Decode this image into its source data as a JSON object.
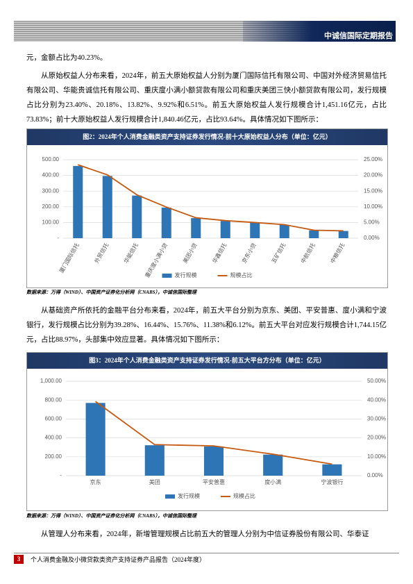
{
  "header": {
    "title": "中诚信国际定期报告"
  },
  "paragraphs": [
    "元，金额占比为40.23%。",
    "从原始权益人分布来看，2024年，前五大原始权益人分别为厦门国际信托有限公司、中国对外经济贸易信托有限公司、华能贵诚信托有限公司、重庆度小满小额贷款有限公司和重庆美团三快小额贷款有限公司，发行规模占比分别为23.40%、20.18%、13.82%、9.92%和6.51%。前五大原始权益人发行规模合计1,451.16亿元，占比73.83%；前十大原始权益人发行规模合计1,840.46亿元，占比93.64%。具体情况如下图所示：",
    "从基础资产所依托的金融平台分布来看，2024年，前五大平台分别为京东、美团、平安普惠、度小满和宁波银行，发行规模占比分别为39.28%、16.44%、15.76%、11.38%和6.12%。前五大平台对应发行规模合计1,744.15亿元，占比88.97%，头部集中效应显著。具体情况如下图所示：",
    "从管理人分布来看，2024年，新增管理规模占比前五大的管理人分别为中信证券股份有限公司、华泰证"
  ],
  "chart_data": [
    {
      "type": "combo",
      "title": "图2：2024年个人消费金融类资产支持证券发行情况-前十大原始权益人分布（单位：亿元）",
      "categories": [
        "厦门国际信托",
        "外贸信托",
        "华能信托",
        "重庆度小满小贷",
        "美团小贷",
        "华鑫信托",
        "京东小贷",
        "五矿信托",
        "中航信托",
        "中粮信托"
      ],
      "series": [
        {
          "name": "发行规模",
          "type": "bar",
          "color": "#2e75b6",
          "values": [
            459.9,
            396.6,
            271.6,
            195.0,
            128.0,
            110,
            98,
            85,
            50,
            46
          ]
        },
        {
          "name": "规模占比",
          "type": "line",
          "axis": "y2",
          "color": "#c55a11",
          "values": [
            23.4,
            20.18,
            13.82,
            9.92,
            6.51,
            5.6,
            4.99,
            4.32,
            2.54,
            2.34
          ]
        }
      ],
      "ylim": [
        0,
        500
      ],
      "yticks": [
        {
          "value": 0,
          "label": "-"
        },
        {
          "value": 100,
          "label": "100.00"
        },
        {
          "value": 200,
          "label": "200.00"
        },
        {
          "value": 300,
          "label": "300.00"
        },
        {
          "value": 400,
          "label": "400.00"
        },
        {
          "value": 500,
          "label": "500.00"
        }
      ],
      "y2lim": [
        0,
        25
      ],
      "y2ticks": [
        {
          "value": 0,
          "label": "0.00%"
        },
        {
          "value": 5,
          "label": "5.00%"
        },
        {
          "value": 10,
          "label": "10.00%"
        },
        {
          "value": 15,
          "label": "15.00%"
        },
        {
          "value": 20,
          "label": "20.00%"
        },
        {
          "value": 25,
          "label": "25.00%"
        }
      ],
      "grid": true,
      "legend": "bottom",
      "source": "数据来源：万得（WIND）、中国资产证券化分析网（CNABS），中诚信国际整理"
    },
    {
      "type": "combo",
      "title": "图3：2024年个人消费金融类资产支持证券发行情况-前五大平台方分布（单位：亿元）",
      "categories": [
        "京东",
        "美团",
        "平安普惠",
        "度小满",
        "宁波银行"
      ],
      "series": [
        {
          "name": "发行规模",
          "type": "bar",
          "color": "#2e75b6",
          "values": [
            770.0,
            322.3,
            309.0,
            223.1,
            120.0
          ]
        },
        {
          "name": "规模占比",
          "type": "line",
          "axis": "y2",
          "color": "#c55a11",
          "values": [
            39.28,
            16.44,
            15.76,
            11.38,
            6.12
          ]
        }
      ],
      "ylim": [
        0,
        1000
      ],
      "yticks": [
        {
          "value": 0,
          "label": "-"
        },
        {
          "value": 200,
          "label": "200.00"
        },
        {
          "value": 400,
          "label": "400.00"
        },
        {
          "value": 600,
          "label": "600.00"
        },
        {
          "value": 800,
          "label": "800.00"
        },
        {
          "value": 1000,
          "label": "1,000.00"
        }
      ],
      "y2lim": [
        0,
        50
      ],
      "y2ticks": [
        {
          "value": 0,
          "label": "0.00%"
        },
        {
          "value": 10,
          "label": "10.00%"
        },
        {
          "value": 20,
          "label": "20.00%"
        },
        {
          "value": 30,
          "label": "30.00%"
        },
        {
          "value": 40,
          "label": "40.00%"
        },
        {
          "value": 50,
          "label": "50.00%"
        }
      ],
      "grid": true,
      "legend": "bottom",
      "source": "数据来源：万得（WIND）、中国资产证券化分析网（CNABS），中诚信国际整理"
    }
  ],
  "footer": {
    "page": "3",
    "title": "个人消费金融及小微贷款类资产支持证券产品报告（2024年度）"
  }
}
